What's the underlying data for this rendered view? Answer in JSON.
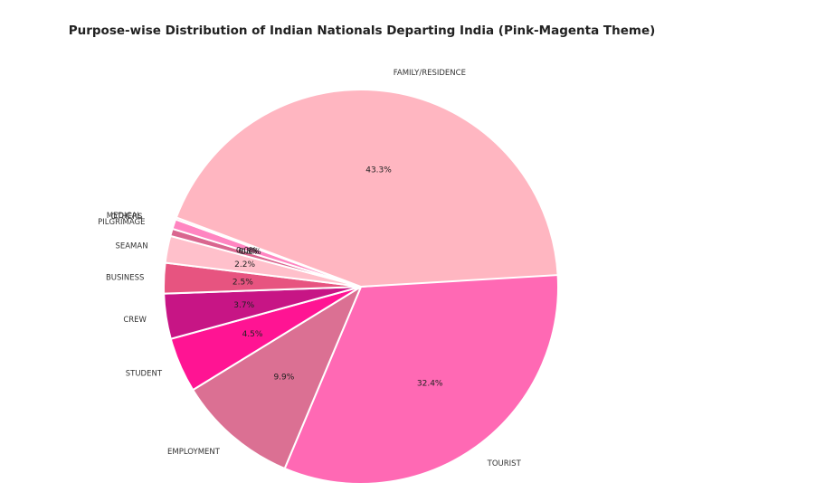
{
  "chart_data": {
    "type": "pie",
    "title": "Purpose-wise Distribution of Indian Nationals Departing India (Pink-Magenta Theme)",
    "slices": [
      {
        "label": "TOURIST",
        "value": 32.4,
        "pct_label": "32.4%",
        "color": "#ff69b4"
      },
      {
        "label": "EMPLOYMENT",
        "value": 9.9,
        "pct_label": "9.9%",
        "color": "#db7093"
      },
      {
        "label": "STUDENT",
        "value": 4.5,
        "pct_label": "4.5%",
        "color": "#ff1493"
      },
      {
        "label": "CREW",
        "value": 3.7,
        "pct_label": "3.7%",
        "color": "#c71585"
      },
      {
        "label": "BUSINESS",
        "value": 2.5,
        "pct_label": "2.5%",
        "color": "#e75480"
      },
      {
        "label": "SEAMAN",
        "value": 2.2,
        "pct_label": "2.2%",
        "color": "#ffc0cb"
      },
      {
        "label": "PILGRIMAGE",
        "value": 0.6,
        "pct_label": "0.6%",
        "color": "#d9668f"
      },
      {
        "label": "OTHERS",
        "value": 0.8,
        "pct_label": "0.8%",
        "color": "#ff85c1"
      },
      {
        "label": "MEDICAL",
        "value": 0.0,
        "pct_label": "0.0%",
        "color": "#f4a6c0"
      },
      {
        "label": "FAMILY/RESIDENCE",
        "value": 43.3,
        "pct_label": "43.3%",
        "color": "#ffb6c1"
      }
    ]
  }
}
